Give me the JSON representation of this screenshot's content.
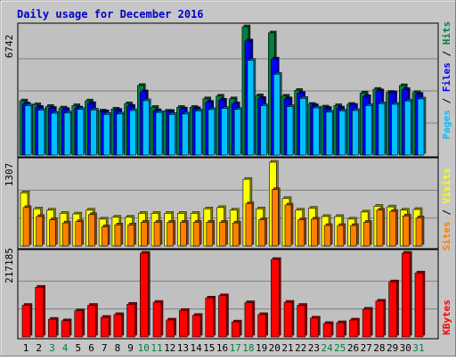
{
  "chart_data": [
    {
      "type": "bar",
      "title": "Daily usage for December 2016",
      "categories": [
        "1",
        "2",
        "3",
        "4",
        "5",
        "6",
        "7",
        "8",
        "9",
        "10",
        "11",
        "12",
        "13",
        "14",
        "15",
        "16",
        "17",
        "18",
        "19",
        "20",
        "21",
        "22",
        "23",
        "24",
        "25",
        "26",
        "27",
        "28",
        "29",
        "30",
        "31"
      ],
      "weekend_days": [
        "3",
        "4",
        "10",
        "11",
        "17",
        "18",
        "24",
        "25",
        "31"
      ],
      "ymax_label": "6742",
      "ylim": [
        0,
        6742
      ],
      "series": [
        {
          "name": "Hits",
          "color": "#008040",
          "values": [
            2850,
            2650,
            2560,
            2480,
            2600,
            2850,
            2320,
            2420,
            2700,
            3660,
            2510,
            2310,
            2510,
            2510,
            2960,
            3100,
            2960,
            6742,
            3120,
            6420,
            3100,
            3400,
            2670,
            2530,
            2600,
            2670,
            3270,
            3460,
            3300,
            3650,
            3290
          ]
        },
        {
          "name": "Files",
          "color": "#0000ff",
          "values": [
            2690,
            2510,
            2460,
            2400,
            2480,
            2710,
            2280,
            2360,
            2570,
            3330,
            2340,
            2300,
            2430,
            2440,
            2780,
            2890,
            2700,
            6000,
            2980,
            5050,
            2960,
            3250,
            2600,
            2460,
            2480,
            2620,
            3080,
            3380,
            3280,
            3450,
            3200
          ]
        },
        {
          "name": "Pages",
          "color": "#00c0ff",
          "values": [
            2600,
            2360,
            2200,
            2210,
            2400,
            2370,
            2140,
            2160,
            2340,
            2860,
            2240,
            2140,
            2160,
            2320,
            2390,
            2450,
            2400,
            4980,
            2600,
            4250,
            2550,
            2980,
            2480,
            2260,
            2320,
            2340,
            2600,
            2700,
            2670,
            2840,
            2950
          ]
        }
      ]
    },
    {
      "type": "bar",
      "ymax_label": "1307",
      "ylim": [
        0,
        1307
      ],
      "series": [
        {
          "name": "Visits",
          "color": "#ffff00",
          "values": [
            830,
            580,
            560,
            510,
            500,
            560,
            420,
            450,
            450,
            510,
            510,
            510,
            510,
            510,
            580,
            600,
            560,
            1040,
            580,
            1307,
            740,
            560,
            590,
            460,
            460,
            420,
            530,
            620,
            610,
            560,
            570
          ]
        },
        {
          "name": "Sites",
          "color": "#ff8000",
          "values": [
            600,
            460,
            410,
            360,
            380,
            490,
            300,
            330,
            330,
            370,
            370,
            370,
            370,
            370,
            370,
            370,
            360,
            660,
            410,
            880,
            640,
            410,
            420,
            320,
            320,
            320,
            370,
            560,
            540,
            470,
            440
          ]
        }
      ]
    },
    {
      "type": "bar",
      "ymax_label": "217185",
      "ylim": [
        0,
        217185
      ],
      "series": [
        {
          "name": "KBytes",
          "color": "#ff0000",
          "values": [
            82000,
            129000,
            46000,
            42000,
            68000,
            82000,
            51000,
            58000,
            85000,
            217185,
            90000,
            44000,
            69000,
            56000,
            101000,
            107000,
            39000,
            89000,
            58000,
            201000,
            90000,
            82000,
            49000,
            35000,
            37000,
            44000,
            72000,
            93000,
            143000,
            217185,
            166000
          ]
        }
      ]
    }
  ]
}
